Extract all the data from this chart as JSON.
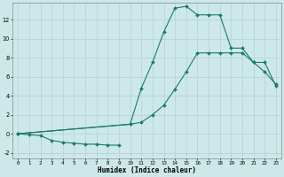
{
  "xlabel": "Humidex (Indice chaleur)",
  "bg_color": "#cde8e8",
  "grid_color": "#b8d4d4",
  "line_color": "#1a7a6e",
  "xlim": [
    -0.5,
    23.5
  ],
  "ylim": [
    -2.6,
    13.8
  ],
  "xticks": [
    0,
    1,
    2,
    3,
    4,
    5,
    6,
    7,
    8,
    9,
    10,
    11,
    12,
    13,
    14,
    15,
    16,
    17,
    18,
    19,
    20,
    21,
    22,
    23
  ],
  "yticks": [
    -2,
    0,
    2,
    4,
    6,
    8,
    10,
    12
  ],
  "curve_neg_x": [
    0,
    1,
    2,
    3,
    4,
    5,
    6,
    7,
    8,
    9
  ],
  "curve_neg_y": [
    0.0,
    -0.1,
    -0.2,
    -0.7,
    -0.9,
    -1.0,
    -1.1,
    -1.1,
    -1.2,
    -1.2
  ],
  "curve_top_x": [
    0,
    10,
    11,
    12,
    13,
    14,
    15,
    16,
    17,
    18,
    19,
    20,
    21,
    22,
    23
  ],
  "curve_top_y": [
    0.0,
    1.0,
    4.8,
    7.5,
    10.7,
    13.2,
    13.4,
    12.5,
    12.5,
    12.5,
    9.0,
    9.0,
    7.5,
    6.5,
    5.2
  ],
  "curve_mid_x": [
    0,
    10,
    11,
    12,
    13,
    14,
    15,
    16,
    17,
    18,
    19,
    20,
    21,
    22,
    23
  ],
  "curve_mid_y": [
    0.0,
    1.0,
    1.2,
    2.0,
    3.0,
    4.7,
    6.5,
    8.5,
    8.5,
    8.5,
    8.5,
    8.5,
    7.5,
    7.5,
    5.0
  ]
}
